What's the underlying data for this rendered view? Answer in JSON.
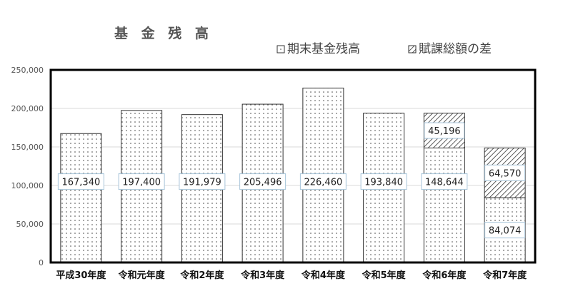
{
  "chart_data": {
    "type": "bar",
    "stacked": true,
    "title": "基 金 残 高",
    "xlabel": "",
    "ylabel": "",
    "categories": [
      "平成30年度",
      "令和元年度",
      "令和2年度",
      "令和3年度",
      "令和4年度",
      "令和5年度",
      "令和6年度",
      "令和7年度"
    ],
    "series": [
      {
        "name": "期末基金残高",
        "values": [
          167340,
          197400,
          191979,
          205496,
          226460,
          193840,
          148644,
          84074
        ],
        "labels": [
          "167,340",
          "197,400",
          "191,979",
          "205,496",
          "226,460",
          "193,840",
          "148,644",
          "84,074"
        ],
        "pattern": "dots"
      },
      {
        "name": "賦課総額の差",
        "values": [
          null,
          null,
          null,
          null,
          null,
          null,
          45196,
          64570
        ],
        "labels": [
          "",
          "",
          "",
          "",
          "",
          "",
          "45,196",
          "64,570"
        ],
        "pattern": "diagonal-hatch"
      }
    ],
    "ylim": [
      0,
      250000
    ],
    "yticks": [
      0,
      50000,
      100000,
      150000,
      200000,
      250000
    ],
    "ytick_labels": [
      "0",
      "50,000",
      "100,000",
      "150,000",
      "200,000",
      "250,000"
    ],
    "grid": true,
    "legend": "top-right"
  }
}
